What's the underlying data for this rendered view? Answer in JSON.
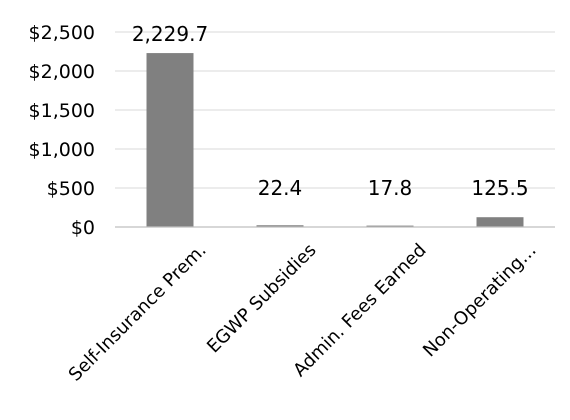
{
  "chart_data": {
    "type": "bar",
    "categories": [
      "Self-Insurance Prem.",
      "EGWP Subsidies",
      "Admin. Fees Earned",
      "Non-Operating…"
    ],
    "values": [
      2229.7,
      22.4,
      17.8,
      125.5
    ],
    "data_labels": [
      "2,229.7",
      "22.4",
      "17.8",
      "125.5"
    ],
    "y_ticks": [
      0,
      500,
      1000,
      1500,
      2000,
      2500
    ],
    "y_tick_labels": [
      "$0",
      "$500",
      "$1,000",
      "$1,500",
      "$2,000",
      "$2,500"
    ],
    "ylim": [
      0,
      2500
    ],
    "title": "",
    "xlabel": "",
    "ylabel": "",
    "grid": true,
    "legend": "none",
    "bar_color": "#808080",
    "grid_color": "#d9d9d9",
    "axis_color": "#bfbfbf"
  }
}
